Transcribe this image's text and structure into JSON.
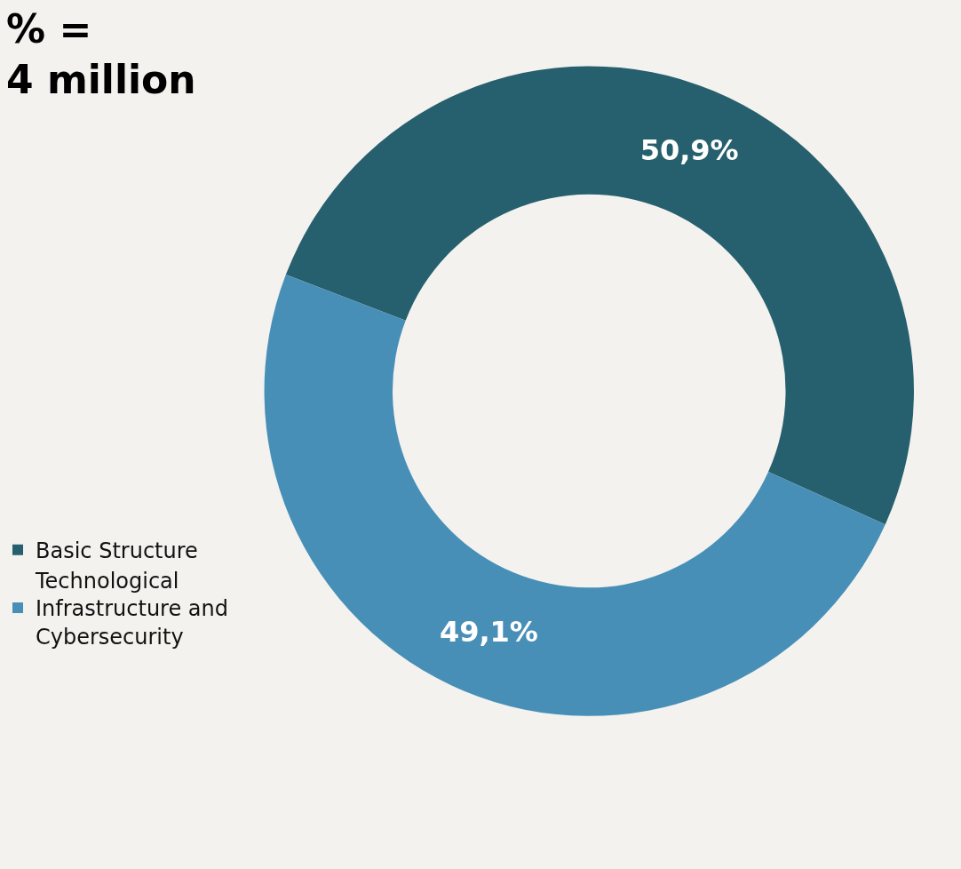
{
  "chart_data": {
    "type": "donut",
    "title": "% =\n4 million",
    "categories": [
      "Basic Structure",
      "Technological Infrastructure and Cybersecurity"
    ],
    "values": [
      50.9,
      49.1
    ],
    "colors": [
      "#265f6d",
      "#488fb7"
    ],
    "value_labels": [
      "50,9%",
      "49,1%"
    ],
    "legend": "left"
  }
}
